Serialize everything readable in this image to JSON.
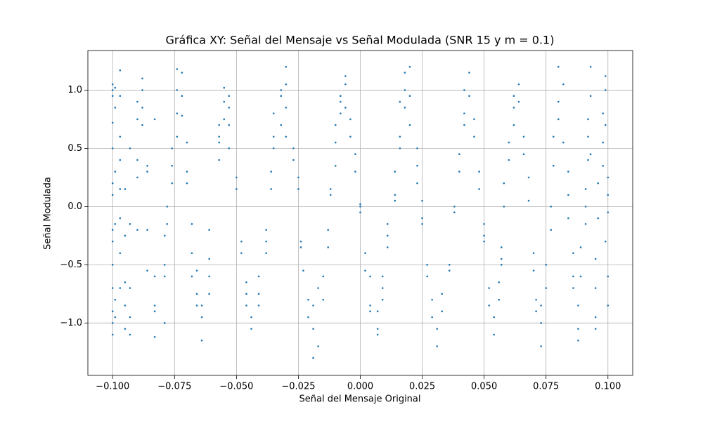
{
  "chart_data": {
    "type": "scatter",
    "title": "Gráfica XY: Señal del Mensaje vs Señal Modulada (SNR 15 y m = 0.1)",
    "x_label": "Señal del Mensaje Original",
    "y_label": "Señal Modulada",
    "color": "#1f77b4",
    "grid": true,
    "xlim": [
      -0.11,
      0.11
    ],
    "ylim": [
      -1.45,
      1.34
    ],
    "xticks": [
      {
        "value": -0.1,
        "label": "−0.100"
      },
      {
        "value": -0.075,
        "label": "−0.075"
      },
      {
        "value": -0.05,
        "label": "−0.050"
      },
      {
        "value": -0.025,
        "label": "−0.025"
      },
      {
        "value": 0,
        "label": "0.000"
      },
      {
        "value": 0.025,
        "label": "0.025"
      },
      {
        "value": 0.05,
        "label": "0.050"
      },
      {
        "value": 0.075,
        "label": "0.075"
      },
      {
        "value": 0.1,
        "label": "0.100"
      }
    ],
    "yticks": [
      {
        "value": -1,
        "label": "−1.0"
      },
      {
        "value": -0.5,
        "label": "−0.5"
      },
      {
        "value": 0,
        "label": "0.0"
      },
      {
        "value": 0.5,
        "label": "0.5"
      },
      {
        "value": 1,
        "label": "1.0"
      }
    ],
    "x": [
      -0.1,
      -0.1,
      -0.1,
      -0.1,
      -0.1,
      -0.1,
      -0.1,
      -0.1,
      -0.1,
      -0.1,
      -0.1,
      -0.1,
      -0.1,
      -0.1,
      -0.099,
      -0.099,
      -0.099,
      -0.099,
      -0.099,
      -0.099,
      -0.097,
      -0.097,
      -0.097,
      -0.097,
      -0.097,
      -0.097,
      -0.097,
      -0.097,
      -0.095,
      -0.095,
      -0.095,
      -0.095,
      -0.095,
      -0.093,
      -0.093,
      -0.093,
      -0.093,
      -0.093,
      -0.09,
      -0.09,
      -0.09,
      -0.09,
      -0.09,
      -0.088,
      -0.088,
      -0.088,
      -0.088,
      -0.086,
      -0.086,
      -0.086,
      -0.086,
      -0.083,
      -0.083,
      -0.083,
      -0.083,
      -0.083,
      -0.079,
      -0.079,
      -0.079,
      -0.079,
      -0.078,
      -0.078,
      -0.076,
      -0.076,
      -0.076,
      -0.074,
      -0.074,
      -0.074,
      -0.074,
      -0.072,
      -0.072,
      -0.072,
      -0.07,
      -0.07,
      -0.07,
      -0.068,
      -0.068,
      -0.068,
      -0.066,
      -0.066,
      -0.066,
      -0.064,
      -0.064,
      -0.064,
      -0.061,
      -0.061,
      -0.061,
      -0.061,
      -0.057,
      -0.057,
      -0.057,
      -0.057,
      -0.055,
      -0.055,
      -0.055,
      -0.053,
      -0.053,
      -0.053,
      -0.053,
      -0.05,
      -0.05,
      -0.048,
      -0.048,
      -0.046,
      -0.046,
      -0.046,
      -0.044,
      -0.044,
      -0.041,
      -0.041,
      -0.041,
      -0.038,
      -0.038,
      -0.038,
      -0.036,
      -0.036,
      -0.035,
      -0.035,
      -0.035,
      -0.032,
      -0.032,
      -0.032,
      -0.03,
      -0.03,
      -0.03,
      -0.03,
      -0.027,
      -0.027,
      -0.025,
      -0.025,
      -0.024,
      -0.024,
      -0.023,
      -0.021,
      -0.021,
      -0.019,
      -0.019,
      -0.019,
      -0.017,
      -0.017,
      -0.015,
      -0.015,
      -0.013,
      -0.013,
      -0.012,
      -0.012,
      -0.01,
      -0.01,
      -0.01,
      -0.008,
      -0.008,
      -0.008,
      -0.006,
      -0.006,
      -0.006,
      -0.004,
      -0.004,
      -0.002,
      -0.002,
      0,
      0,
      0,
      0.002,
      0.002,
      0.004,
      0.004,
      0.004,
      0.007,
      0.007,
      0.007,
      0.009,
      0.009,
      0.009,
      0.011,
      0.011,
      0.011,
      0.014,
      0.014,
      0.014,
      0.016,
      0.016,
      0.016,
      0.018,
      0.018,
      0.018,
      0.02,
      0.02,
      0.02,
      0.023,
      0.023,
      0.023,
      0.025,
      0.025,
      0.025,
      0.027,
      0.027,
      0.029,
      0.029,
      0.031,
      0.031,
      0.033,
      0.033,
      0.036,
      0.036,
      0.038,
      0.038,
      0.04,
      0.04,
      0.042,
      0.042,
      0.042,
      0.044,
      0.044,
      0.046,
      0.046,
      0.048,
      0.048,
      0.05,
      0.05,
      0.05,
      0.052,
      0.052,
      0.054,
      0.054,
      0.056,
      0.056,
      0.057,
      0.057,
      0.057,
      0.058,
      0.058,
      0.06,
      0.06,
      0.062,
      0.062,
      0.062,
      0.064,
      0.064,
      0.066,
      0.066,
      0.068,
      0.068,
      0.07,
      0.07,
      0.071,
      0.071,
      0.073,
      0.073,
      0.073,
      0.075,
      0.075,
      0.077,
      0.077,
      0.078,
      0.078,
      0.08,
      0.08,
      0.08,
      0.082,
      0.082,
      0.084,
      0.084,
      0.084,
      0.086,
      0.086,
      0.086,
      0.088,
      0.088,
      0.088,
      0.089,
      0.089,
      0.091,
      0.091,
      0.091,
      0.092,
      0.092,
      0.092,
      0.093,
      0.093,
      0.093,
      0.095,
      0.095,
      0.095,
      0.095,
      0.096,
      0.096,
      0.098,
      0.098,
      0.098,
      0.099,
      0.099,
      0.099,
      0.099,
      0.1,
      0.1,
      0.1,
      0.1,
      0.1
    ],
    "values": [
      1.05,
      1.0,
      0.95,
      0.72,
      0.5,
      0.2,
      0.1,
      -0.2,
      -0.3,
      -0.5,
      -0.7,
      -0.9,
      -1.0,
      -1.1,
      1.02,
      0.85,
      0.3,
      -0.15,
      -0.8,
      -0.95,
      1.17,
      0.95,
      0.6,
      0.4,
      0.15,
      -0.1,
      -0.4,
      -0.7,
      -0.65,
      -0.85,
      -1.05,
      0.15,
      -0.25,
      -0.7,
      -0.95,
      -1.1,
      -0.15,
      0.5,
      0.9,
      0.75,
      0.4,
      0.25,
      -0.2,
      1.1,
      1.0,
      0.85,
      0.7,
      0.3,
      0.35,
      -0.2,
      -0.55,
      -0.6,
      -0.9,
      -1.12,
      -0.85,
      0.75,
      -0.5,
      -0.6,
      -1.0,
      -0.25,
      -0.15,
      0.0,
      0.5,
      0.35,
      0.2,
      1.18,
      1.0,
      0.8,
      0.6,
      1.15,
      0.95,
      0.78,
      0.55,
      0.3,
      0.2,
      -0.15,
      -0.4,
      -0.6,
      -0.55,
      -0.75,
      -0.85,
      -0.85,
      -0.95,
      -1.15,
      -0.6,
      -0.75,
      -0.45,
      -0.2,
      0.55,
      0.6,
      0.4,
      0.7,
      0.75,
      0.9,
      1.02,
      0.85,
      0.95,
      0.5,
      0.7,
      0.25,
      0.15,
      -0.3,
      -0.4,
      -0.65,
      -0.75,
      -0.85,
      -0.95,
      -1.05,
      -0.85,
      -0.75,
      -0.6,
      -0.3,
      -0.2,
      -0.4,
      0.15,
      0.3,
      0.5,
      0.6,
      0.8,
      0.95,
      1.0,
      0.7,
      1.2,
      1.05,
      0.85,
      0.6,
      0.4,
      0.5,
      0.25,
      0.15,
      -0.3,
      -0.35,
      -0.55,
      -0.8,
      -0.95,
      -1.05,
      -1.3,
      -0.85,
      -1.2,
      -0.7,
      -0.6,
      -0.8,
      -0.2,
      -0.35,
      0.1,
      0.15,
      0.55,
      0.7,
      0.35,
      0.9,
      0.95,
      0.8,
      1.12,
      1.05,
      0.85,
      0.6,
      0.75,
      0.3,
      0.45,
      0.0,
      -0.05,
      0.02,
      -0.4,
      -0.55,
      -0.85,
      -0.9,
      -0.6,
      -1.05,
      -0.9,
      -1.1,
      -0.7,
      -0.8,
      -0.6,
      -0.15,
      -0.25,
      -0.35,
      0.3,
      0.05,
      0.1,
      0.6,
      0.5,
      0.9,
      1.0,
      1.15,
      0.85,
      1.2,
      0.95,
      0.7,
      0.5,
      0.35,
      0.2,
      0.05,
      -0.1,
      -0.15,
      -0.5,
      -0.6,
      -0.8,
      -0.95,
      -1.2,
      -1.05,
      -0.9,
      -0.75,
      -0.5,
      -0.55,
      0.0,
      -0.05,
      0.3,
      0.45,
      0.7,
      0.8,
      1.0,
      1.15,
      0.95,
      0.75,
      0.6,
      0.3,
      0.15,
      -0.15,
      -0.25,
      -0.3,
      -0.7,
      -0.85,
      -1.1,
      -0.95,
      -0.8,
      -0.65,
      -0.45,
      -0.5,
      -0.35,
      0.0,
      0.2,
      0.4,
      0.55,
      0.85,
      0.95,
      0.7,
      1.05,
      0.9,
      0.6,
      0.45,
      0.25,
      0.05,
      -0.4,
      -0.55,
      -0.8,
      -0.9,
      -1.2,
      -1.0,
      -0.85,
      -0.7,
      -0.5,
      -0.2,
      0.0,
      0.35,
      0.6,
      0.9,
      1.2,
      0.75,
      1.05,
      0.55,
      0.1,
      0.3,
      -0.1,
      -0.4,
      -0.6,
      -0.7,
      -0.85,
      -1.05,
      -1.15,
      -0.6,
      -0.35,
      0.0,
      0.15,
      -0.15,
      0.4,
      0.6,
      0.75,
      0.95,
      1.2,
      0.45,
      -0.45,
      -0.7,
      -0.95,
      -1.05,
      0.2,
      -0.1,
      0.35,
      0.55,
      0.8,
      1.0,
      1.12,
      0.7,
      -0.3,
      0.1,
      -0.05,
      -0.6,
      -0.85,
      0.25
    ]
  }
}
